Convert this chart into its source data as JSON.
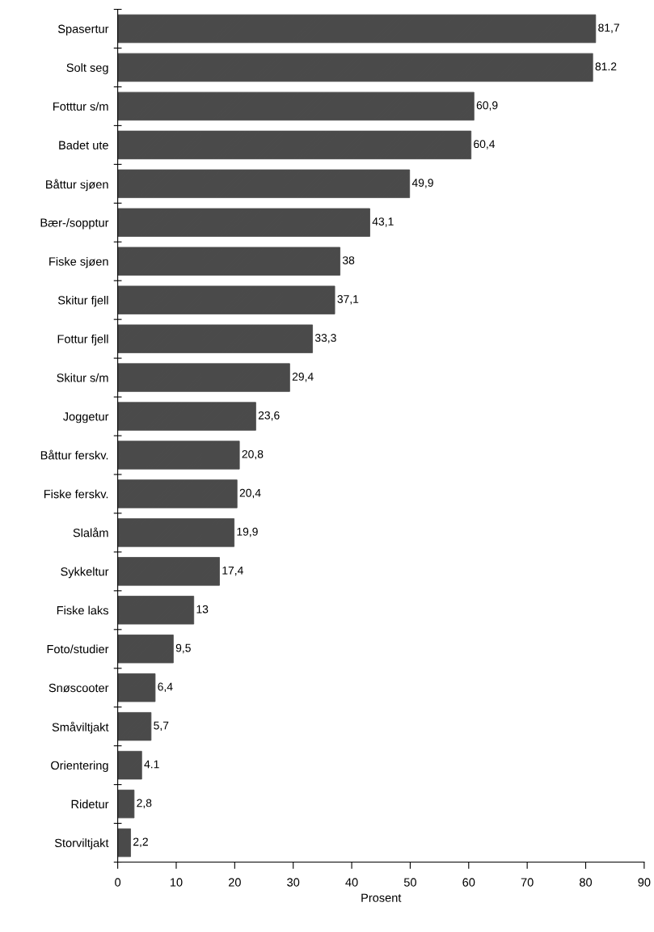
{
  "chart_data": {
    "type": "bar",
    "orientation": "horizontal",
    "xlabel": "Prosent",
    "categories": [
      "Spasertur",
      "Solt seg",
      "Fotttur s/m",
      "Badet ute",
      "Båttur sjøen",
      "Bær-/sopptur",
      "Fiske sjøen",
      "Skitur fjell",
      "Fottur fjell",
      "Skitur s/m",
      "Joggetur",
      "Båttur ferskv.",
      "Fiske ferskv.",
      "Slalåm",
      "Sykkeltur",
      "Fiske laks",
      "Foto/studier",
      "Snøscooter",
      "Småviltjakt",
      "Orientering",
      "Ridetur",
      "Storviltjakt"
    ],
    "values": [
      81.7,
      81.2,
      60.9,
      60.4,
      49.9,
      43.1,
      38,
      37.1,
      33.3,
      29.4,
      23.6,
      20.8,
      20.4,
      19.9,
      17.4,
      13,
      9.5,
      6.4,
      5.7,
      4.1,
      2.8,
      2.2
    ],
    "value_labels": [
      "81,7",
      "81.2",
      "60,9",
      "60,4",
      "49,9",
      "43,1",
      "38",
      "37,1",
      "33,3",
      "29,4",
      "23,6",
      "20,8",
      "20,4",
      "19,9",
      "17,4",
      "13",
      "9,5",
      "6,4",
      "5,7",
      "4.1",
      "2,8",
      "2,2"
    ],
    "color": "#4a4a4a",
    "xlim": [
      0,
      90
    ],
    "xticks": [
      0,
      10,
      20,
      30,
      40,
      50,
      60,
      70,
      80,
      90
    ],
    "grid": false,
    "legend": false
  }
}
